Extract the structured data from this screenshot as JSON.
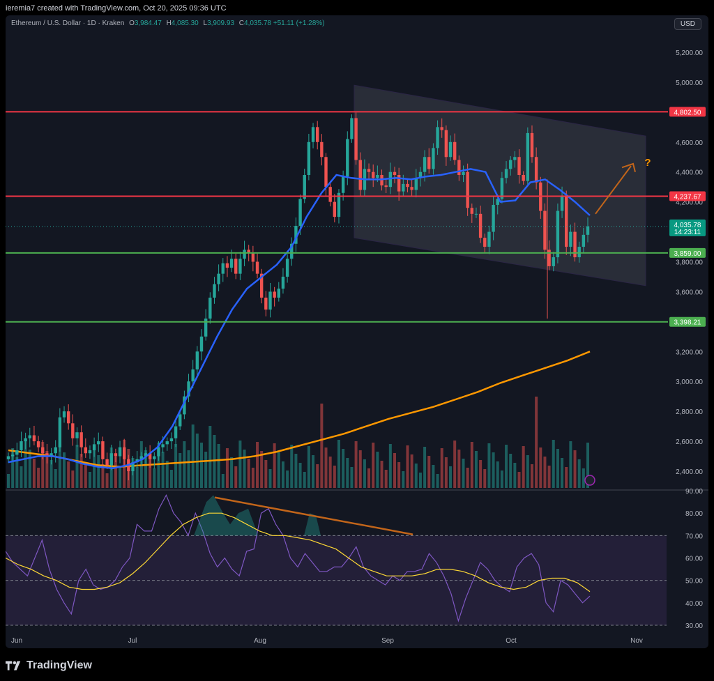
{
  "header": {
    "author_line": "ieremia7 created with TradingView.com, Oct 20, 2025 09:36 UTC",
    "currency_button": "USD"
  },
  "legend": {
    "symbol": "Ethereum / U.S. Dollar · 1D · Kraken",
    "o_label": "O",
    "o_value": "3,984.47",
    "h_label": "H",
    "h_value": "4,085.30",
    "l_label": "L",
    "l_value": "3,909.93",
    "c_label": "C",
    "c_value": "4,035.78",
    "change": "+51.11 (+1.28%)"
  },
  "price_axis": [
    "5,200.00",
    "5,000.00",
    "4,800.00",
    "4,600.00",
    "4,400.00",
    "4,200.00",
    "4,000.00",
    "3,800.00",
    "3,600.00",
    "3,400.00",
    "3,200.00",
    "3,000.00",
    "2,800.00",
    "2,600.00",
    "2,400.00"
  ],
  "rsi_axis": [
    "90.00",
    "80.00",
    "70.00",
    "60.00",
    "50.00",
    "40.00",
    "30.00"
  ],
  "time_axis": [
    "Jun",
    "Jul",
    "Aug",
    "Sep",
    "Oct",
    "Nov"
  ],
  "level_labels": {
    "r1": "4,802.50",
    "r2": "4,237.67",
    "s1": "3,859.00",
    "s2": "3,398.21",
    "last_price": "4,035.78",
    "countdown": "14:23:11"
  },
  "annotation": {
    "question": "?"
  },
  "colors": {
    "bull": "#26a69a",
    "bear": "#ef5350",
    "resistance": "#f23645",
    "support": "#4caf50",
    "ma_fast": "#2962ff",
    "ma_slow": "#ff9800",
    "rsi": "#7e57c2",
    "rsi_ma": "#fdd835",
    "divergence": "#c2651a",
    "channel": "#7e57c2"
  },
  "footer": {
    "brand": "TradingView"
  },
  "chart_data": {
    "type": "candlestick",
    "title": "Ethereum / U.S. Dollar · 1D · Kraken",
    "ylim": [
      2300,
      5300
    ],
    "x_range": [
      "Jun",
      "Nov"
    ],
    "horizontal_levels": [
      {
        "kind": "resistance",
        "value": 4802.5
      },
      {
        "kind": "resistance",
        "value": 4237.67
      },
      {
        "kind": "support",
        "value": 3859.0
      },
      {
        "kind": "support",
        "value": 3398.21
      }
    ],
    "descending_channel": {
      "upper": [
        {
          "x": "Aug 23",
          "y": 4980
        },
        {
          "x": "Oct 30",
          "y": 4640
        }
      ],
      "lower": [
        {
          "x": "Aug 23",
          "y": 3960
        },
        {
          "x": "Oct 30",
          "y": 3640
        }
      ]
    },
    "candles_close": [
      2500,
      2510,
      2540,
      2600,
      2620,
      2640,
      2600,
      2560,
      2520,
      2500,
      2520,
      2560,
      2760,
      2800,
      2720,
      2620,
      2660,
      2560,
      2520,
      2540,
      2580,
      2600,
      2480,
      2440,
      2520,
      2500,
      2560,
      2480,
      2400,
      2460,
      2480,
      2500,
      2520,
      2480,
      2500,
      2560,
      2580,
      2600,
      2620,
      2700,
      2780,
      2900,
      3000,
      3080,
      3200,
      3300,
      3420,
      3560,
      3650,
      3720,
      3790,
      3760,
      3820,
      3720,
      3820,
      3880,
      3860,
      3800,
      3720,
      3560,
      3480,
      3600,
      3560,
      3620,
      3700,
      3820,
      3920,
      4040,
      4220,
      4380,
      4600,
      4700,
      4600,
      4500,
      4300,
      4200,
      4100,
      4260,
      4370,
      4620,
      4760,
      4480,
      4280,
      4420,
      4400,
      4360,
      4380,
      4310,
      4300,
      4400,
      4380,
      4270,
      4320,
      4300,
      4280,
      4360,
      4400,
      4500,
      4420,
      4560,
      4700,
      4680,
      4500,
      4600,
      4480,
      4380,
      4400,
      4160,
      4120,
      4120,
      3960,
      3900,
      4000,
      4180,
      4220,
      4360,
      4420,
      4480,
      4500,
      4380,
      4340,
      4660,
      4500,
      4330,
      4140,
      3880,
      3770,
      3830,
      4140,
      4240,
      3900,
      4000,
      3830,
      3900,
      3980,
      4035.78
    ],
    "ma_fast": {
      "points": [
        2460,
        2480,
        2500,
        2500,
        2480,
        2450,
        2430,
        2420,
        2440,
        2480,
        2560,
        2700,
        2900,
        3100,
        3300,
        3480,
        3620,
        3700,
        3780,
        3900,
        4100,
        4260,
        4380,
        4360,
        4350,
        4350,
        4360,
        4350,
        4370,
        4380,
        4400,
        4420,
        4400,
        4200,
        4210,
        4330,
        4350,
        4280,
        4200,
        4110
      ]
    },
    "ma_slow": {
      "points": [
        2540,
        2520,
        2500,
        2470,
        2440,
        2430,
        2440,
        2450,
        2460,
        2470,
        2480,
        2500,
        2530,
        2570,
        2610,
        2650,
        2700,
        2750,
        2790,
        2830,
        2880,
        2930,
        2990,
        3040,
        3090,
        3140,
        3200
      ]
    },
    "volume": "bars shown at bottom of price pane (no values printed)",
    "rsi": {
      "ylim": [
        30,
        90
      ],
      "band": [
        30,
        70
      ],
      "divergence_line": [
        {
          "x": "Jul 23",
          "y": 87
        },
        {
          "x": "Sep 6",
          "y": 71
        }
      ]
    },
    "projection": "upward arrow from ~4,120 toward ~4,460 with '?' label"
  }
}
